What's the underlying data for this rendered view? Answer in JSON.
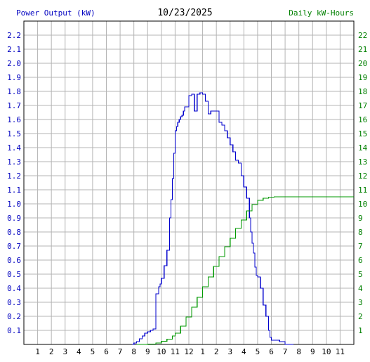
{
  "header": {
    "left_label": "Power Output (kW)",
    "date": "10/23/2025",
    "right_label": "Daily kW-Hours"
  },
  "colors": {
    "power": "#0000cc",
    "energy": "#009900",
    "grid": "#b4b4b4",
    "left_axis_text": "#0000c0",
    "right_axis_text": "#008000"
  },
  "chart_data": {
    "type": "line",
    "x_ticks": [
      "1",
      "2",
      "3",
      "4",
      "5",
      "6",
      "7",
      "8",
      "9",
      "10",
      "11",
      "12",
      "1",
      "2",
      "3",
      "4",
      "5",
      "6",
      "7",
      "8",
      "9",
      "10",
      "11"
    ],
    "xlim": [
      0,
      24
    ],
    "y_left": {
      "label": "Power Output (kW)",
      "ylim": [
        0,
        2.3
      ],
      "ticks": [
        "0.1",
        "0.2",
        "0.3",
        "0.4",
        "0.5",
        "0.6",
        "0.7",
        "0.8",
        "0.9",
        "1.0",
        "1.1",
        "1.2",
        "1.3",
        "1.4",
        "1.5",
        "1.6",
        "1.7",
        "1.8",
        "1.9",
        "2.0",
        "2.1",
        "2.2"
      ]
    },
    "y_right": {
      "label": "Daily kW-Hours",
      "ylim": [
        0,
        23
      ],
      "ticks": [
        "1",
        "2",
        "3",
        "4",
        "5",
        "6",
        "7",
        "8",
        "9",
        "10",
        "11",
        "12",
        "13",
        "14",
        "15",
        "16",
        "17",
        "18",
        "19",
        "20",
        "21",
        "22"
      ]
    },
    "grid": true,
    "series": [
      {
        "name": "Power Output (kW)",
        "axis": "left",
        "step": true,
        "x": [
          7.9,
          8.0,
          8.2,
          8.4,
          8.6,
          8.8,
          9.0,
          9.2,
          9.4,
          9.6,
          9.8,
          9.9,
          10.0,
          10.2,
          10.4,
          10.6,
          10.7,
          10.8,
          10.9,
          11.0,
          11.1,
          11.2,
          11.3,
          11.4,
          11.5,
          11.6,
          11.7,
          11.8,
          11.9,
          12.0,
          12.2,
          12.4,
          12.6,
          12.8,
          12.9,
          13.0,
          13.2,
          13.4,
          13.6,
          13.8,
          14.0,
          14.2,
          14.4,
          14.6,
          14.8,
          15.0,
          15.2,
          15.4,
          15.6,
          15.8,
          16.0,
          16.2,
          16.4,
          16.5,
          16.6,
          16.7,
          16.8,
          16.9,
          17.0,
          17.2,
          17.4,
          17.6,
          17.8,
          17.9,
          18.0,
          18.2,
          18.4,
          18.6,
          19.0,
          19.6
        ],
        "y": [
          0.0,
          0.01,
          0.02,
          0.04,
          0.06,
          0.08,
          0.09,
          0.1,
          0.11,
          0.36,
          0.41,
          0.43,
          0.47,
          0.56,
          0.67,
          0.9,
          1.03,
          1.18,
          1.36,
          1.52,
          1.55,
          1.58,
          1.6,
          1.62,
          1.63,
          1.66,
          1.69,
          1.69,
          1.69,
          1.77,
          1.78,
          1.66,
          1.78,
          1.79,
          1.79,
          1.78,
          1.73,
          1.64,
          1.66,
          1.66,
          1.66,
          1.58,
          1.56,
          1.52,
          1.47,
          1.42,
          1.37,
          1.31,
          1.29,
          1.2,
          1.12,
          1.04,
          0.9,
          0.8,
          0.72,
          0.65,
          0.55,
          0.49,
          0.48,
          0.4,
          0.28,
          0.2,
          0.1,
          0.05,
          0.03,
          0.03,
          0.03,
          0.02,
          0.0,
          0.0
        ]
      },
      {
        "name": "Daily kW-Hours",
        "axis": "right",
        "step": true,
        "x": [
          8.2,
          9.0,
          9.6,
          10.0,
          10.4,
          10.8,
          11.0,
          11.4,
          11.8,
          12.2,
          12.6,
          13.0,
          13.4,
          13.8,
          14.2,
          14.6,
          15.0,
          15.4,
          15.8,
          16.2,
          16.6,
          17.0,
          17.4,
          17.8,
          18.2,
          18.6,
          19.0,
          20.0,
          22.0,
          24.0
        ],
        "y": [
          0.0,
          0.02,
          0.1,
          0.22,
          0.38,
          0.6,
          0.8,
          1.3,
          1.95,
          2.65,
          3.35,
          4.1,
          4.8,
          5.55,
          6.25,
          6.95,
          7.55,
          8.25,
          8.85,
          9.5,
          9.95,
          10.25,
          10.4,
          10.48,
          10.5,
          10.5,
          10.5,
          10.5,
          10.5,
          10.5
        ]
      }
    ]
  }
}
